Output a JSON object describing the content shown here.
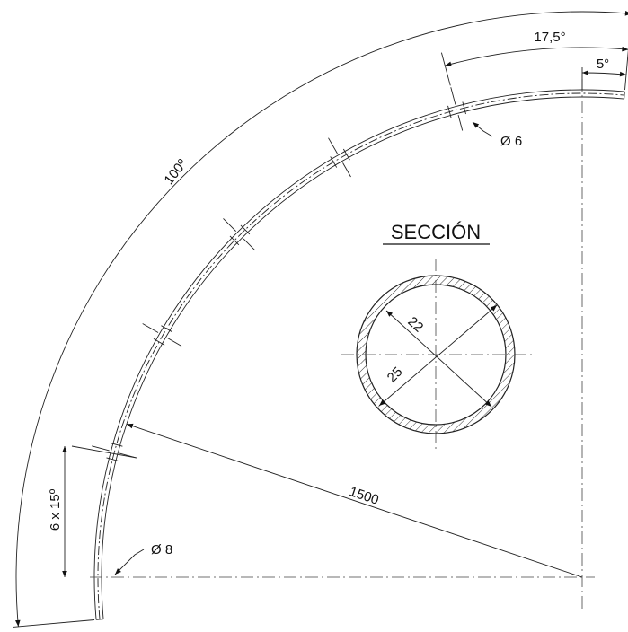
{
  "labels": {
    "angle_first_hole": "17,5°",
    "angle_end": "5°",
    "hole_diameter": "Ø 6",
    "total_angle": "100º",
    "section_title": "SECCIÓN",
    "inner_diameter": "22",
    "outer_diameter": "25",
    "radius": "1500",
    "hole_pitch": "6 x 15º",
    "end_diameter": "Ø 8"
  }
}
